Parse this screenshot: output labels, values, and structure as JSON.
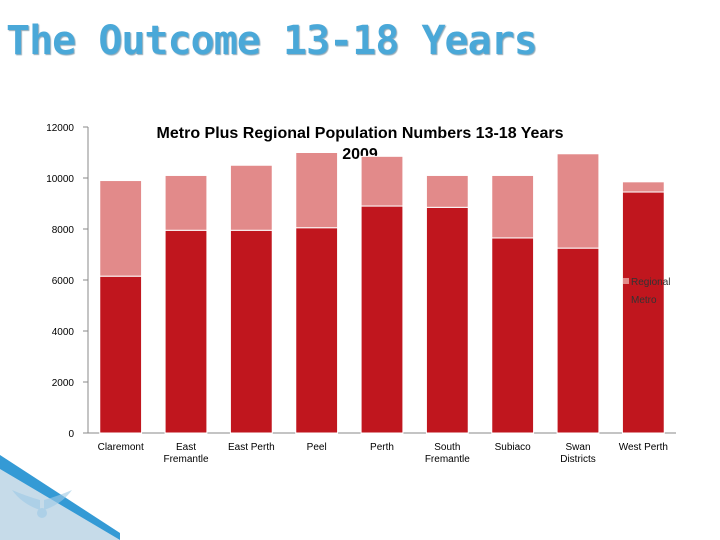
{
  "slide": {
    "title": "The Outcome 13-18 Years"
  },
  "colors": {
    "metro": "#c0161e",
    "regional": "#e28a8a",
    "title": "#4aa8d8",
    "corner": "#1e8fd0"
  },
  "chart_data": {
    "type": "bar",
    "stacked": true,
    "title": "Metro Plus Regional Population Numbers 13-18 Years",
    "subtitle": "2009",
    "categories": [
      "Claremont",
      "East Fremantle",
      "East Perth",
      "Peel",
      "Perth",
      "South Fremantle",
      "Subiaco",
      "Swan Districts",
      "West Perth"
    ],
    "series": [
      {
        "name": "Metro",
        "values": [
          6150,
          7950,
          7950,
          8050,
          8900,
          8850,
          7650,
          7250,
          9450
        ]
      },
      {
        "name": "Regional",
        "values": [
          3750,
          2150,
          2550,
          2950,
          1950,
          1250,
          2450,
          3700,
          400
        ]
      }
    ],
    "ylim": [
      0,
      12000
    ],
    "yticks": [
      0,
      2000,
      4000,
      6000,
      8000,
      10000,
      12000
    ],
    "grid": false,
    "legend": "right"
  }
}
